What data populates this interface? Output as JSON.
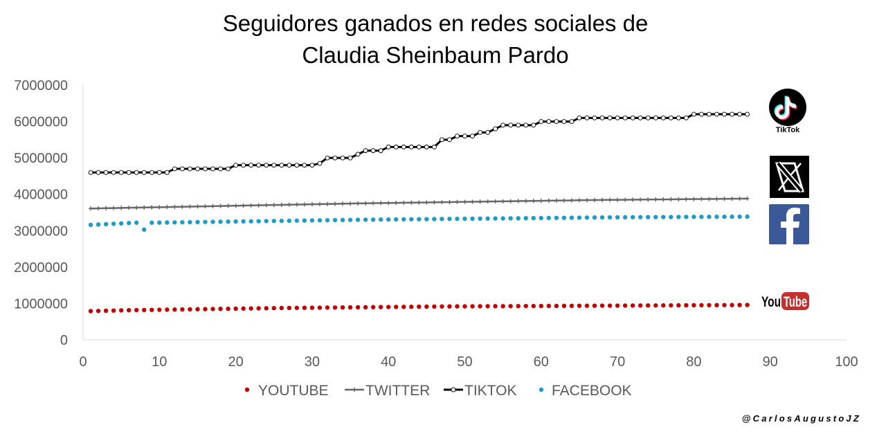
{
  "chart_data": {
    "type": "line",
    "title_line1": "Seguidores ganados en redes sociales de",
    "title_line2": "Claudia Sheinbaum Pardo",
    "xlabel": "",
    "ylabel": "",
    "xlim": [
      0,
      100
    ],
    "ylim": [
      0,
      7000000
    ],
    "x_ticks": [
      "0",
      "10",
      "20",
      "30",
      "40",
      "50",
      "60",
      "70",
      "80",
      "90",
      "100"
    ],
    "y_ticks": [
      "0",
      "1000000",
      "2000000",
      "3000000",
      "4000000",
      "5000000",
      "6000000",
      "7000000"
    ],
    "grid": false,
    "legend_position": "bottom",
    "series": [
      {
        "name": "YOUTUBE",
        "color": "#c00000",
        "marker": "dot",
        "x": [
          1,
          2,
          3,
          4,
          5,
          6,
          7,
          8,
          9,
          10,
          11,
          12,
          13,
          14,
          15,
          16,
          17,
          18,
          19,
          20,
          21,
          22,
          23,
          24,
          25,
          26,
          27,
          28,
          29,
          30,
          31,
          32,
          33,
          34,
          35,
          36,
          37,
          38,
          39,
          40,
          41,
          42,
          43,
          44,
          45,
          46,
          47,
          48,
          49,
          50,
          51,
          52,
          53,
          54,
          55,
          56,
          57,
          58,
          59,
          60,
          61,
          62,
          63,
          64,
          65,
          66,
          67,
          68,
          69,
          70,
          71,
          72,
          73,
          74,
          75,
          76,
          77,
          78,
          79,
          80,
          81,
          82,
          83,
          84,
          85,
          86,
          87
        ],
        "y": [
          790000,
          795000,
          800000,
          805000,
          810000,
          815000,
          818000,
          821000,
          824000,
          827000,
          830000,
          833000,
          836000,
          839000,
          842000,
          845000,
          848000,
          851000,
          854000,
          857000,
          860000,
          863000,
          866000,
          869000,
          872000,
          875000,
          877000,
          879000,
          881000,
          883000,
          885000,
          887000,
          889000,
          891000,
          893000,
          895000,
          897000,
          899000,
          901000,
          903000,
          905000,
          907000,
          909000,
          911000,
          913000,
          915000,
          917000,
          919000,
          920000,
          921000,
          922000,
          923000,
          924000,
          925000,
          926000,
          927000,
          928000,
          929000,
          930000,
          931000,
          932000,
          933000,
          934000,
          935000,
          936000,
          937000,
          938000,
          939000,
          940000,
          941000,
          942000,
          943000,
          944000,
          945000,
          946000,
          947000,
          948000,
          949000,
          950000,
          951000,
          952000,
          953000,
          954000,
          955000,
          956000,
          957000,
          958000
        ]
      },
      {
        "name": "TWITTER",
        "color": "#666666",
        "marker": "star",
        "x": [
          1,
          2,
          3,
          4,
          5,
          6,
          7,
          8,
          9,
          10,
          11,
          12,
          13,
          14,
          15,
          16,
          17,
          18,
          19,
          20,
          21,
          22,
          23,
          24,
          25,
          26,
          27,
          28,
          29,
          30,
          31,
          32,
          33,
          34,
          35,
          36,
          37,
          38,
          39,
          40,
          41,
          42,
          43,
          44,
          45,
          46,
          47,
          48,
          49,
          50,
          51,
          52,
          53,
          54,
          55,
          56,
          57,
          58,
          59,
          60,
          61,
          62,
          63,
          64,
          65,
          66,
          67,
          68,
          69,
          70,
          71,
          72,
          73,
          74,
          75,
          76,
          77,
          78,
          79,
          80,
          81,
          82,
          83,
          84,
          85,
          86,
          87
        ],
        "y": [
          3610000,
          3614000,
          3618000,
          3622000,
          3626000,
          3630000,
          3634000,
          3638000,
          3642000,
          3646000,
          3650000,
          3654000,
          3658000,
          3662000,
          3666000,
          3670000,
          3674000,
          3678000,
          3682000,
          3686000,
          3690000,
          3694000,
          3698000,
          3702000,
          3706000,
          3710000,
          3714000,
          3718000,
          3722000,
          3726000,
          3730000,
          3734000,
          3738000,
          3742000,
          3746000,
          3750000,
          3753000,
          3756000,
          3759000,
          3762000,
          3765000,
          3768000,
          3771000,
          3774000,
          3777000,
          3780000,
          3783000,
          3786000,
          3789000,
          3792000,
          3795000,
          3798000,
          3801000,
          3804000,
          3807000,
          3810000,
          3813000,
          3816000,
          3819000,
          3822000,
          3825000,
          3828000,
          3831000,
          3834000,
          3837000,
          3840000,
          3842000,
          3844000,
          3846000,
          3848000,
          3850000,
          3852000,
          3854000,
          3856000,
          3858000,
          3860000,
          3862000,
          3864000,
          3866000,
          3868000,
          3870000,
          3872000,
          3874000,
          3876000,
          3878000,
          3880000,
          3882000
        ]
      },
      {
        "name": "TIKTOK",
        "color": "#000000",
        "marker": "open-circle",
        "x": [
          1,
          2,
          3,
          4,
          5,
          6,
          7,
          8,
          9,
          10,
          11,
          12,
          13,
          14,
          15,
          16,
          17,
          18,
          19,
          20,
          21,
          22,
          23,
          24,
          25,
          26,
          27,
          28,
          29,
          30,
          31,
          32,
          33,
          34,
          35,
          36,
          37,
          38,
          39,
          40,
          41,
          42,
          43,
          44,
          45,
          46,
          47,
          48,
          49,
          50,
          51,
          52,
          53,
          54,
          55,
          56,
          57,
          58,
          59,
          60,
          61,
          62,
          63,
          64,
          65,
          66,
          67,
          68,
          69,
          70,
          71,
          72,
          73,
          74,
          75,
          76,
          77,
          78,
          79,
          80,
          81,
          82,
          83,
          84,
          85,
          86,
          87
        ],
        "y": [
          4600000,
          4600000,
          4600000,
          4600000,
          4600000,
          4600000,
          4600000,
          4600000,
          4600000,
          4600000,
          4600000,
          4700000,
          4700000,
          4700000,
          4700000,
          4700000,
          4700000,
          4700000,
          4700000,
          4800000,
          4800000,
          4800000,
          4800000,
          4800000,
          4800000,
          4800000,
          4800000,
          4800000,
          4800000,
          4800000,
          4850000,
          5000000,
          5000000,
          5000000,
          5000000,
          5100000,
          5200000,
          5200000,
          5200000,
          5300000,
          5300000,
          5300000,
          5300000,
          5300000,
          5300000,
          5300000,
          5500000,
          5500000,
          5600000,
          5600000,
          5600000,
          5700000,
          5700000,
          5800000,
          5900000,
          5900000,
          5900000,
          5900000,
          5900000,
          6000000,
          6000000,
          6000000,
          6000000,
          6000000,
          6100000,
          6100000,
          6100000,
          6100000,
          6100000,
          6100000,
          6100000,
          6100000,
          6100000,
          6100000,
          6100000,
          6100000,
          6100000,
          6100000,
          6100000,
          6200000,
          6200000,
          6200000,
          6200000,
          6200000,
          6200000,
          6200000,
          6200000
        ]
      },
      {
        "name": "FACEBOOK",
        "color": "#1f9bc7",
        "marker": "dot",
        "x": [
          1,
          2,
          3,
          4,
          5,
          6,
          7,
          8,
          9,
          10,
          11,
          12,
          13,
          14,
          15,
          16,
          17,
          18,
          19,
          20,
          21,
          22,
          23,
          24,
          25,
          26,
          27,
          28,
          29,
          30,
          31,
          32,
          33,
          34,
          35,
          36,
          37,
          38,
          39,
          40,
          41,
          42,
          43,
          44,
          45,
          46,
          47,
          48,
          49,
          50,
          51,
          52,
          53,
          54,
          55,
          56,
          57,
          58,
          59,
          60,
          61,
          62,
          63,
          64,
          65,
          66,
          67,
          68,
          69,
          70,
          71,
          72,
          73,
          74,
          75,
          76,
          77,
          78,
          79,
          80,
          81,
          82,
          83,
          84,
          85,
          86,
          87
        ],
        "y": [
          3160000,
          3170000,
          3180000,
          3190000,
          3200000,
          3210000,
          3220000,
          3030000,
          3220000,
          3222000,
          3225000,
          3228000,
          3231000,
          3234000,
          3237000,
          3240000,
          3243000,
          3246000,
          3249000,
          3252000,
          3255000,
          3258000,
          3261000,
          3264000,
          3267000,
          3270000,
          3273000,
          3276000,
          3279000,
          3282000,
          3285000,
          3288000,
          3291000,
          3294000,
          3297000,
          3300000,
          3302000,
          3304000,
          3306000,
          3308000,
          3310000,
          3312000,
          3314000,
          3316000,
          3318000,
          3320000,
          3322000,
          3324000,
          3326000,
          3328000,
          3330000,
          3332000,
          3334000,
          3336000,
          3338000,
          3340000,
          3342000,
          3344000,
          3346000,
          3348000,
          3350000,
          3352000,
          3354000,
          3356000,
          3358000,
          3360000,
          3362000,
          3364000,
          3366000,
          3368000,
          3370000,
          3371000,
          3372000,
          3373000,
          3374000,
          3375000,
          3376000,
          3377000,
          3378000,
          3379000,
          3380000,
          3381000,
          3382000,
          3383000,
          3384000,
          3385000,
          3386000
        ]
      }
    ],
    "logos": {
      "tiktok": {
        "icon": "tiktok-logo",
        "label": "TikTok"
      },
      "x": {
        "icon": "x-logo"
      },
      "facebook": {
        "icon": "facebook-logo",
        "color": "#3b5998"
      },
      "youtube": {
        "icon": "youtube-logo",
        "text_you": "You",
        "text_tube": "Tube",
        "color": "#c4302b"
      }
    }
  },
  "credit": "@CarlosAugustoJZ"
}
